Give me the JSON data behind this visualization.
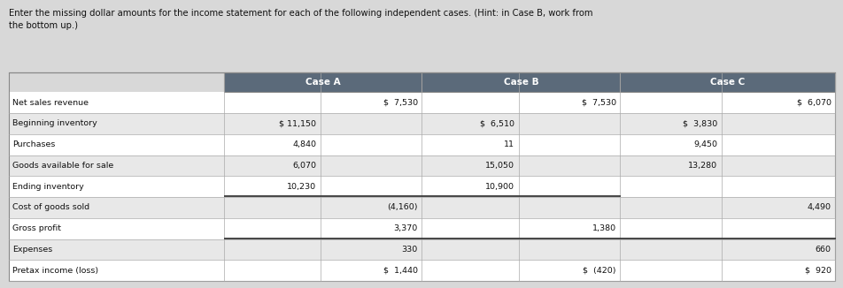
{
  "title": "Enter the missing dollar amounts for the income statement for each of the following independent cases. (Hint: in Case B, work from\nthe bottom up.)",
  "background_color": "#d8d8d8",
  "header_bg": "#5b6a7a",
  "header_text_color": "#ffffff",
  "row_colors": [
    "#ffffff",
    "#e8e8e8"
  ],
  "border_color": "#aaaaaa",
  "rows": [
    "Net sales revenue",
    "Beginning inventory",
    "Purchases",
    "Goods available for sale",
    "Ending inventory",
    "Cost of goods sold",
    "Gross profit",
    "Expenses",
    "Pretax income (loss)"
  ],
  "case_a_left": [
    "",
    "$ 11,150",
    "4,840",
    "6,070",
    "10,230",
    "",
    "",
    "",
    ""
  ],
  "case_a_right": [
    "$  7,530",
    "",
    "",
    "",
    "",
    "(4,160)",
    "3,370",
    "330",
    "$  1,440"
  ],
  "case_b_left": [
    "",
    "$  6,510",
    "11",
    "15,050",
    "10,900",
    "",
    "",
    "",
    ""
  ],
  "case_b_right": [
    "$  7,530",
    "",
    "",
    "",
    "",
    "",
    "1,380",
    "",
    "$  (420)"
  ],
  "case_c_left": [
    "",
    "$  3,830",
    "9,450",
    "13,280",
    "",
    "",
    "",
    "",
    ""
  ],
  "case_c_right": [
    "$  6,070",
    "",
    "",
    "",
    "",
    "4,490",
    "",
    "660",
    "$  920"
  ],
  "case_a_divider_rows": [
    4,
    6
  ],
  "case_b_divider_rows": [
    4,
    6
  ],
  "case_c_divider_rows": [
    6
  ]
}
